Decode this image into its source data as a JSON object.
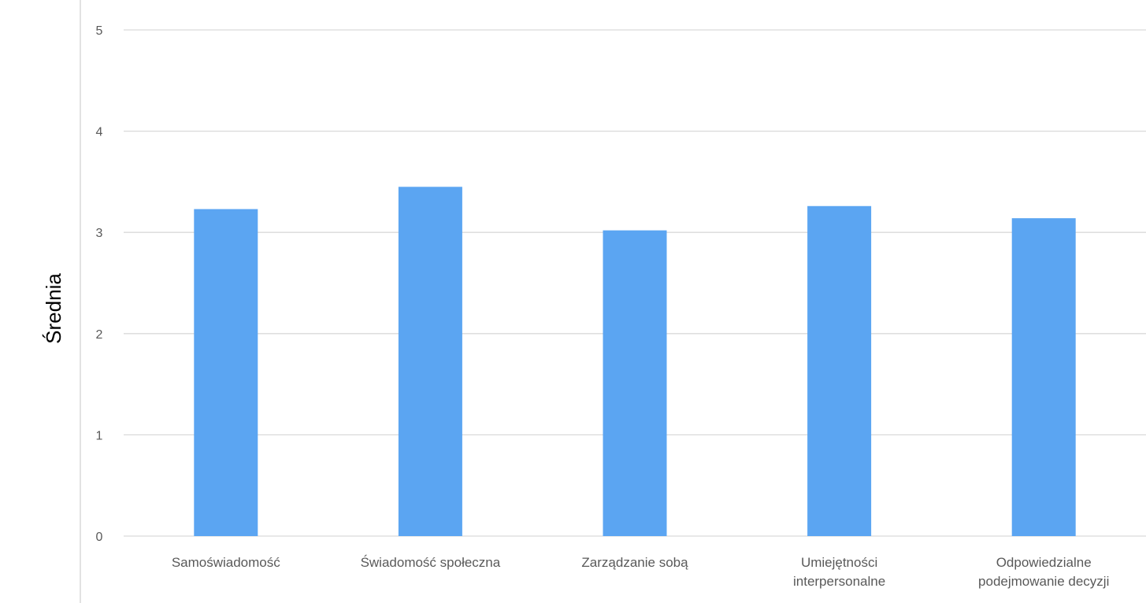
{
  "chart_data": {
    "type": "bar",
    "categories": [
      [
        "Samoświadomość"
      ],
      [
        "Świadomość społeczna"
      ],
      [
        "Zarządzanie sobą"
      ],
      [
        "Umiejętności",
        "interpersonalne"
      ],
      [
        "Odpowiedzialne",
        "podejmowanie decyzji"
      ]
    ],
    "values": [
      3.23,
      3.45,
      3.02,
      3.26,
      3.14
    ],
    "ylabel": "Średnia",
    "ylim": [
      0,
      5
    ],
    "yticks": [
      0,
      1,
      2,
      3,
      4,
      5
    ],
    "grid": true,
    "bar_color": "#5BA5F2",
    "gridline_color": "#D9D9D9"
  }
}
